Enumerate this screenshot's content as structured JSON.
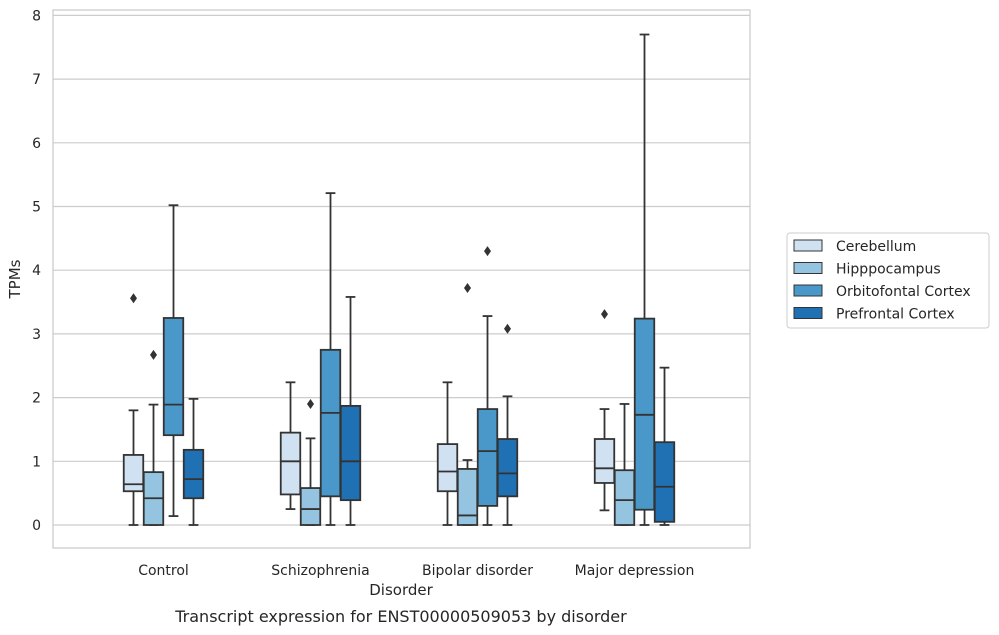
{
  "chart_data": {
    "type": "box",
    "title": "",
    "caption": "Transcript expression for ENST00000509053 by disorder",
    "xlabel": "Disorder",
    "ylabel": "TPMs",
    "ylim": [
      -0.38,
      8.12
    ],
    "yticks": [
      0,
      1,
      2,
      3,
      4,
      5,
      6,
      7,
      8
    ],
    "grid": "horizontal",
    "legend_position": "right",
    "categories": [
      "Control",
      "Schizophrenia",
      "Bipolar disorder",
      "Major depression"
    ],
    "series": [
      {
        "name": "Cerebellum",
        "color": "#d0e1f2",
        "boxes": [
          {
            "whisker_low": 0.0,
            "q1": 0.53,
            "median": 0.64,
            "q3": 1.1,
            "whisker_high": 1.8,
            "outliers": [
              3.56
            ]
          },
          {
            "whisker_low": 0.25,
            "q1": 0.48,
            "median": 1.0,
            "q3": 1.45,
            "whisker_high": 2.24,
            "outliers": []
          },
          {
            "whisker_low": 0.0,
            "q1": 0.53,
            "median": 0.84,
            "q3": 1.27,
            "whisker_high": 2.24,
            "outliers": []
          },
          {
            "whisker_low": 0.23,
            "q1": 0.66,
            "median": 0.89,
            "q3": 1.35,
            "whisker_high": 1.82,
            "outliers": [
              3.31
            ]
          }
        ]
      },
      {
        "name": "Hipppocampus",
        "color": "#94c4df",
        "boxes": [
          {
            "whisker_low": 0.0,
            "q1": 0.0,
            "median": 0.42,
            "q3": 0.83,
            "whisker_high": 1.89,
            "outliers": [
              2.67
            ]
          },
          {
            "whisker_low": 0.0,
            "q1": 0.0,
            "median": 0.25,
            "q3": 0.58,
            "whisker_high": 1.36,
            "outliers": [
              1.9
            ]
          },
          {
            "whisker_low": 0.0,
            "q1": 0.0,
            "median": 0.15,
            "q3": 0.88,
            "whisker_high": 1.02,
            "outliers": [
              3.72
            ]
          },
          {
            "whisker_low": 0.0,
            "q1": 0.0,
            "median": 0.39,
            "q3": 0.86,
            "whisker_high": 1.9,
            "outliers": []
          }
        ]
      },
      {
        "name": "Orbitofontal Cortex",
        "color": "#4a98c9",
        "boxes": [
          {
            "whisker_low": 0.14,
            "q1": 1.41,
            "median": 1.89,
            "q3": 3.25,
            "whisker_high": 5.02,
            "outliers": []
          },
          {
            "whisker_low": 0.0,
            "q1": 0.45,
            "median": 1.76,
            "q3": 2.75,
            "whisker_high": 5.21,
            "outliers": []
          },
          {
            "whisker_low": 0.0,
            "q1": 0.3,
            "median": 1.16,
            "q3": 1.82,
            "whisker_high": 3.28,
            "outliers": [
              4.3
            ]
          },
          {
            "whisker_low": 0.0,
            "q1": 0.24,
            "median": 1.73,
            "q3": 3.24,
            "whisker_high": 7.7,
            "outliers": []
          }
        ]
      },
      {
        "name": "Prefrontal Cortex",
        "color": "#2070b4",
        "boxes": [
          {
            "whisker_low": 0.0,
            "q1": 0.42,
            "median": 0.72,
            "q3": 1.18,
            "whisker_high": 1.98,
            "outliers": []
          },
          {
            "whisker_low": 0.0,
            "q1": 0.39,
            "median": 1.0,
            "q3": 1.87,
            "whisker_high": 3.58,
            "outliers": []
          },
          {
            "whisker_low": 0.0,
            "q1": 0.45,
            "median": 0.81,
            "q3": 1.35,
            "whisker_high": 2.02,
            "outliers": [
              3.08
            ]
          },
          {
            "whisker_low": 0.0,
            "q1": 0.05,
            "median": 0.6,
            "q3": 1.3,
            "whisker_high": 2.47,
            "outliers": []
          }
        ]
      }
    ]
  }
}
